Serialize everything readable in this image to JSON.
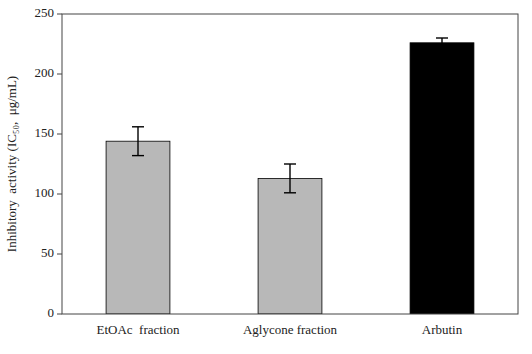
{
  "chart_data": {
    "type": "bar",
    "y_label": "Inhibitory  activity (IC₅₀,  μg/mL)",
    "categories": [
      "EtOAc  fraction",
      "Aglycone fraction",
      "Arbutin"
    ],
    "values": [
      144.0,
      113.0,
      226.0
    ],
    "errors": [
      12.0,
      12.0,
      4.0
    ],
    "colors": [
      "#b8b8b8",
      "#b8b8b8",
      "#000000"
    ],
    "ylim": [
      0,
      250
    ],
    "yticks": [
      0,
      50,
      100,
      150,
      200,
      250
    ],
    "grid": false
  }
}
